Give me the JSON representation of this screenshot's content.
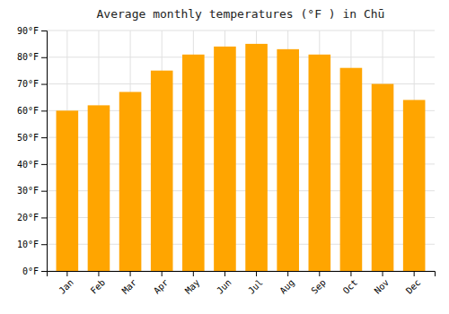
{
  "chart_data": {
    "type": "bar",
    "title": "Average monthly temperatures (°F ) in Chū",
    "categories": [
      "Jan",
      "Feb",
      "Mar",
      "Apr",
      "May",
      "Jun",
      "Jul",
      "Aug",
      "Sep",
      "Oct",
      "Nov",
      "Dec"
    ],
    "values": [
      60,
      62,
      67,
      75,
      81,
      84,
      85,
      83,
      81,
      76,
      70,
      64
    ],
    "color": "#FFA500",
    "ylim": [
      0,
      90
    ],
    "yticks": [
      {
        "value": 0,
        "label": "0°F"
      },
      {
        "value": 10,
        "label": "10°F"
      },
      {
        "value": 20,
        "label": "20°F"
      },
      {
        "value": 30,
        "label": "30°F"
      },
      {
        "value": 40,
        "label": "40°F"
      },
      {
        "value": 50,
        "label": "50°F"
      },
      {
        "value": 60,
        "label": "60°F"
      },
      {
        "value": 70,
        "label": "70°F"
      },
      {
        "value": 80,
        "label": "80°F"
      },
      {
        "value": 90,
        "label": "90°F"
      }
    ],
    "grid": true
  }
}
